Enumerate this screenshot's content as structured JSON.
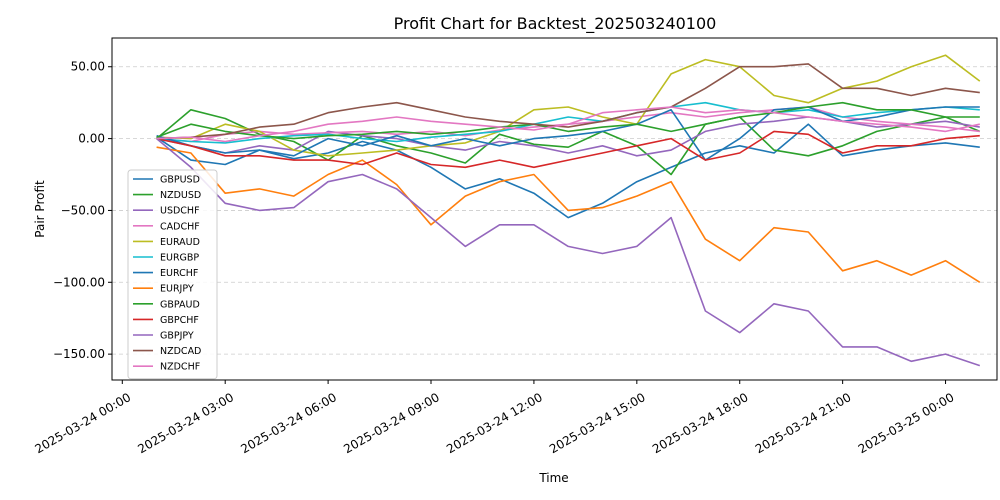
{
  "chart_data": {
    "type": "line",
    "title": "Profit Chart for Backtest_202503240100",
    "xlabel": "Time",
    "ylabel": "Pair Profit",
    "x_ticks": [
      "2025-03-24 00:00",
      "2025-03-24 03:00",
      "2025-03-24 06:00",
      "2025-03-24 09:00",
      "2025-03-24 12:00",
      "2025-03-24 15:00",
      "2025-03-24 18:00",
      "2025-03-24 21:00",
      "2025-03-25 00:00"
    ],
    "x_tick_hours": [
      0,
      3,
      6,
      9,
      12,
      15,
      18,
      21,
      24
    ],
    "y_ticks": [
      -150,
      -100,
      -50,
      0,
      50
    ],
    "y_tick_labels": [
      "−150.00",
      "−100.00",
      "−50.00",
      "0.00",
      "50.00"
    ],
    "xlim_hours": [
      -0.3,
      25.5
    ],
    "ylim": [
      -168,
      70
    ],
    "grid": "y-dashed",
    "legend_position": "left",
    "x_hours": [
      1,
      2,
      3,
      4,
      5,
      6,
      7,
      8,
      9,
      10,
      11,
      12,
      13,
      14,
      15,
      16,
      17,
      18,
      19,
      20,
      21,
      22,
      23,
      24,
      25
    ],
    "series": [
      {
        "name": "GBPUSD",
        "color": "#1f77b4",
        "values": [
          1,
          -15,
          -18,
          -8,
          -14,
          -10,
          -2,
          -8,
          -20,
          -35,
          -28,
          -38,
          -55,
          -45,
          -30,
          -20,
          -10,
          -5,
          -10,
          10,
          -12,
          -8,
          -5,
          -3,
          -6
        ]
      },
      {
        "name": "NZDUSD",
        "color": "#2ca02c",
        "values": [
          0,
          20,
          14,
          3,
          -2,
          -15,
          2,
          -5,
          -10,
          -17,
          3,
          -4,
          -6,
          5,
          -5,
          -25,
          10,
          15,
          -8,
          -12,
          -5,
          5,
          10,
          15,
          5
        ]
      },
      {
        "name": "USDCHF",
        "color": "#9467bd",
        "values": [
          0,
          -5,
          -10,
          -5,
          -8,
          5,
          2,
          0,
          -5,
          -8,
          -2,
          -5,
          -10,
          -5,
          -12,
          -8,
          5,
          10,
          12,
          15,
          12,
          8,
          10,
          12,
          8
        ]
      },
      {
        "name": "CADCHF",
        "color": "#e377c2",
        "values": [
          0,
          -2,
          3,
          5,
          3,
          4,
          5,
          3,
          5,
          2,
          6,
          8,
          10,
          12,
          15,
          18,
          15,
          18,
          20,
          22,
          15,
          12,
          10,
          8,
          5
        ]
      },
      {
        "name": "EURAUD",
        "color": "#bcbd22",
        "values": [
          1,
          0,
          10,
          5,
          -8,
          -12,
          -10,
          -8,
          -5,
          -3,
          5,
          20,
          22,
          15,
          10,
          45,
          55,
          50,
          30,
          25,
          35,
          40,
          50,
          58,
          40
        ]
      },
      {
        "name": "EURGBP",
        "color": "#17becf",
        "values": [
          0,
          -2,
          -3,
          0,
          2,
          3,
          0,
          -2,
          1,
          3,
          5,
          10,
          15,
          12,
          18,
          22,
          25,
          20,
          18,
          20,
          15,
          18,
          20,
          22,
          20
        ]
      },
      {
        "name": "EURCHF",
        "color": "#1f77b4",
        "values": [
          2,
          -5,
          -10,
          -8,
          -12,
          0,
          -5,
          2,
          -5,
          0,
          -5,
          0,
          2,
          5,
          10,
          20,
          -15,
          0,
          20,
          22,
          12,
          15,
          20,
          22,
          22
        ]
      },
      {
        "name": "EURJPY",
        "color": "#ff7f0e",
        "values": [
          -6,
          -10,
          -38,
          -35,
          -40,
          -25,
          -15,
          -32,
          -60,
          -40,
          -30,
          -25,
          -50,
          -48,
          -40,
          -30,
          -70,
          -85,
          -62,
          -65,
          -92,
          -85,
          -95,
          -85,
          -100
        ]
      },
      {
        "name": "GBPAUD",
        "color": "#2ca02c",
        "values": [
          1,
          10,
          5,
          2,
          0,
          2,
          3,
          5,
          3,
          5,
          8,
          10,
          5,
          8,
          10,
          5,
          10,
          15,
          18,
          22,
          25,
          20,
          20,
          15,
          15
        ]
      },
      {
        "name": "GBPCHF",
        "color": "#d62728",
        "values": [
          0,
          -5,
          -12,
          -12,
          -15,
          -15,
          -18,
          -10,
          -18,
          -20,
          -15,
          -20,
          -15,
          -10,
          -5,
          0,
          -15,
          -10,
          5,
          3,
          -10,
          -5,
          -5,
          0,
          2
        ]
      },
      {
        "name": "GBPJPY",
        "color": "#9467bd",
        "values": [
          0,
          -20,
          -45,
          -50,
          -48,
          -30,
          -25,
          -35,
          -55,
          -75,
          -60,
          -60,
          -75,
          -80,
          -75,
          -55,
          -120,
          -135,
          -115,
          -120,
          -145,
          -145,
          -155,
          -150,
          -158
        ]
      },
      {
        "name": "NZDCAD",
        "color": "#8c564b",
        "values": [
          0,
          1,
          3,
          8,
          10,
          18,
          22,
          25,
          20,
          15,
          12,
          10,
          8,
          12,
          18,
          22,
          35,
          50,
          50,
          52,
          35,
          35,
          30,
          35,
          32
        ]
      },
      {
        "name": "NZDCHF",
        "color": "#e377c2",
        "values": [
          0,
          1,
          -2,
          2,
          5,
          10,
          12,
          15,
          12,
          10,
          8,
          6,
          10,
          18,
          20,
          22,
          18,
          20,
          18,
          15,
          12,
          10,
          8,
          5,
          10
        ]
      }
    ]
  }
}
